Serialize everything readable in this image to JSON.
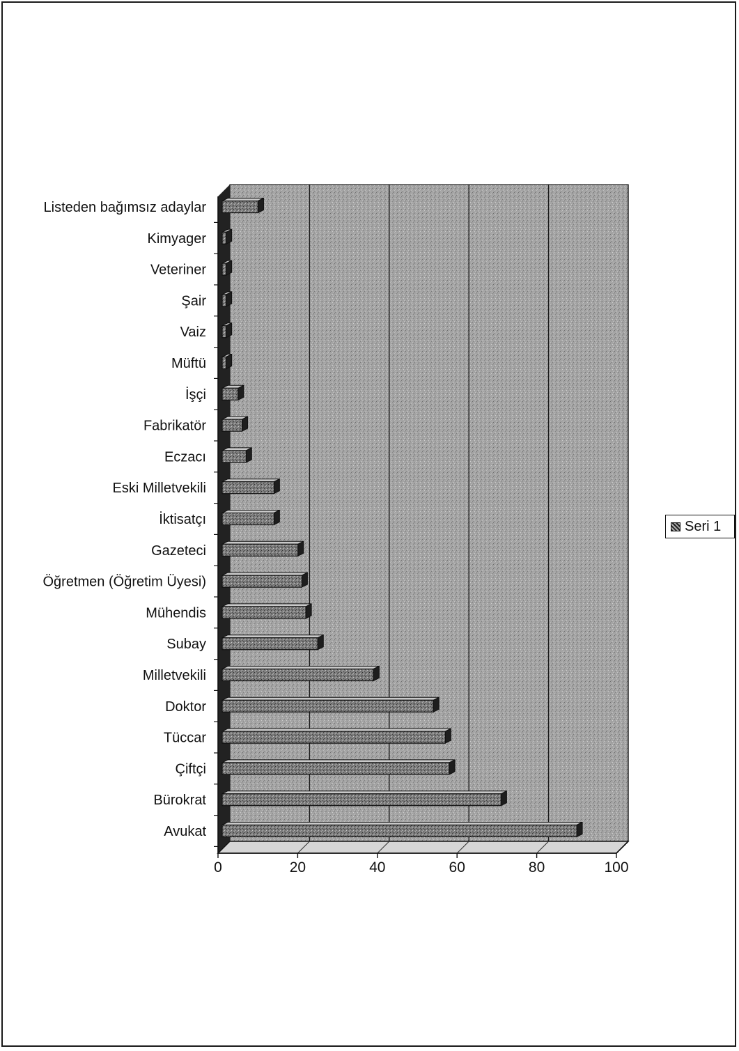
{
  "chart_data": {
    "type": "bar",
    "orientation": "horizontal",
    "categories": [
      "Avukat",
      "Bürokrat",
      "Çiftçi",
      "Tüccar",
      "Doktor",
      "Milletvekili",
      "Subay",
      "Mühendis",
      "Öğretmen (Öğretim Üyesi)",
      "Gazeteci",
      "İktisatçı",
      "Eski Milletvekili",
      "Eczacı",
      "Fabrikatör",
      "İşçi",
      "Müftü",
      "Vaiz",
      "Şair",
      "Veteriner",
      "Kimyager",
      "Listeden bağımsız adaylar"
    ],
    "series": [
      {
        "name": "Seri 1",
        "values": [
          89,
          70,
          57,
          56,
          53,
          38,
          24,
          21,
          20,
          19,
          13,
          13,
          6,
          5,
          4,
          1,
          1,
          1,
          1,
          1,
          9
        ]
      }
    ],
    "xlim": [
      0,
      100
    ],
    "xticks": [
      "0",
      "20",
      "40",
      "60",
      "80",
      "100"
    ],
    "grid": true,
    "legend_position": "right",
    "colors": {
      "bar": "#5a5a5a",
      "plot_bg": "#a9a9a9",
      "axis": "#111111"
    }
  }
}
